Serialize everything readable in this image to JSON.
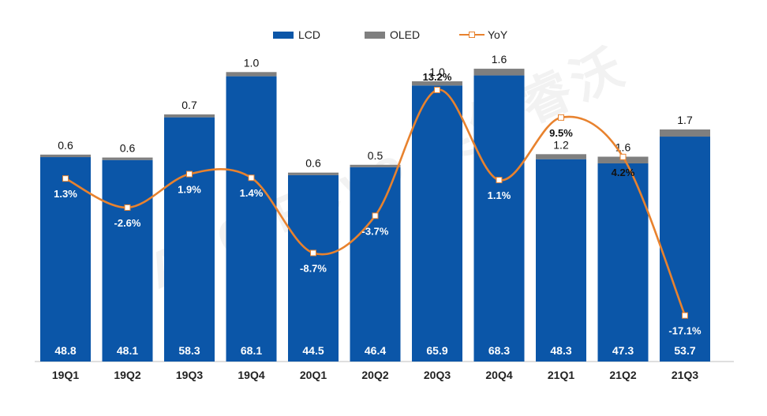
{
  "legend": {
    "lcd": "LCD",
    "oled": "OLED",
    "yoy": "YoY"
  },
  "watermark_text": "AVC Revo 奥维睿沃",
  "colors": {
    "lcd": "#0b56a8",
    "oled": "#7f7f7f",
    "yoy": "#e8822e"
  },
  "chart_data": {
    "type": "bar",
    "stacked": true,
    "categories": [
      "19Q1",
      "19Q2",
      "19Q3",
      "19Q4",
      "20Q1",
      "20Q2",
      "20Q3",
      "20Q4",
      "21Q1",
      "21Q2",
      "21Q3"
    ],
    "series": [
      {
        "name": "LCD",
        "values": [
          48.8,
          48.1,
          58.3,
          68.1,
          44.5,
          46.4,
          65.9,
          68.3,
          48.3,
          47.3,
          53.7
        ],
        "labels": [
          "48.8",
          "48.1",
          "58.3",
          "68.1",
          "44.5",
          "46.4",
          "65.9",
          "68.3",
          "48.3",
          "47.3",
          "53.7"
        ]
      },
      {
        "name": "OLED",
        "values": [
          0.6,
          0.6,
          0.7,
          1.0,
          0.6,
          0.5,
          1.0,
          1.6,
          1.2,
          1.6,
          1.7
        ],
        "labels": [
          "0.6",
          "0.6",
          "0.7",
          "1.0",
          "0.6",
          "0.5",
          "1.0",
          "1.6",
          "1.2",
          "1.6",
          "1.7"
        ]
      },
      {
        "name": "YoY",
        "type": "line",
        "unit": "%",
        "values": [
          1.3,
          -2.6,
          1.9,
          1.4,
          -8.7,
          -3.7,
          13.2,
          1.1,
          9.5,
          4.2,
          -17.1
        ],
        "labels": [
          "1.3%",
          "-2.6%",
          "1.9%",
          "1.4%",
          "-8.7%",
          "-3.7%",
          "13.2%",
          "1.1%",
          "9.5%",
          "4.2%",
          "-17.1%"
        ]
      }
    ],
    "title": "",
    "xlabel": "",
    "ylabel": "",
    "ylim": [
      0,
      75
    ],
    "y2lim": [
      -20,
      15
    ],
    "grid": false,
    "legend_position": "top-center"
  }
}
